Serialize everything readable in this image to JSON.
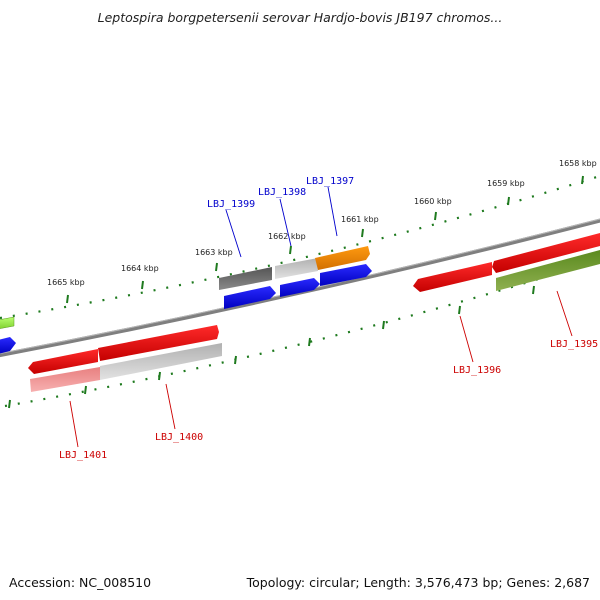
{
  "title": "Leptospira borgpetersenii serovar Hardjo-bovis JB197 chromos...",
  "footer": {
    "accession": "Accession: NC_008510",
    "topology": "Topology: circular; Length: 3,576,473 bp; Genes: 2,687"
  },
  "scale_ticks": [
    {
      "id": "1658",
      "label": "1658 kbp"
    },
    {
      "id": "1659",
      "label": "1659 kbp"
    },
    {
      "id": "1660",
      "label": "1660 kbp"
    },
    {
      "id": "1661",
      "label": "1661 kbp"
    },
    {
      "id": "1662",
      "label": "1662 kbp"
    },
    {
      "id": "1663",
      "label": "1663 kbp"
    },
    {
      "id": "1664",
      "label": "1664 kbp"
    },
    {
      "id": "1665",
      "label": "1665 kbp"
    }
  ],
  "gene_labels": [
    {
      "id": "LBJ_1399",
      "text": "LBJ_1399",
      "color": "#0000cc"
    },
    {
      "id": "LBJ_1398",
      "text": "LBJ_1398",
      "color": "#0000cc"
    },
    {
      "id": "LBJ_1397",
      "text": "LBJ_1397",
      "color": "#0000cc"
    },
    {
      "id": "LBJ_1396",
      "text": "LBJ_1396",
      "color": "#cc0000"
    },
    {
      "id": "LBJ_1395",
      "text": "LBJ_1395",
      "color": "#cc0000"
    },
    {
      "id": "LBJ_1401",
      "text": "LBJ_1401",
      "color": "#cc0000"
    },
    {
      "id": "LBJ_1400",
      "text": "LBJ_1400",
      "color": "#cc0000"
    }
  ],
  "colors": {
    "backbone": "#808080",
    "tick": "#1e7a1e",
    "forward_gene": "#e00000",
    "reverse_gene": "#0000ee",
    "rna_gene": "#f0900a",
    "dark_gene": "#555555",
    "light_gene": "#bdbdbd",
    "olive_gene": "#5a8a1e",
    "lime_gene": "#a0ee50"
  }
}
